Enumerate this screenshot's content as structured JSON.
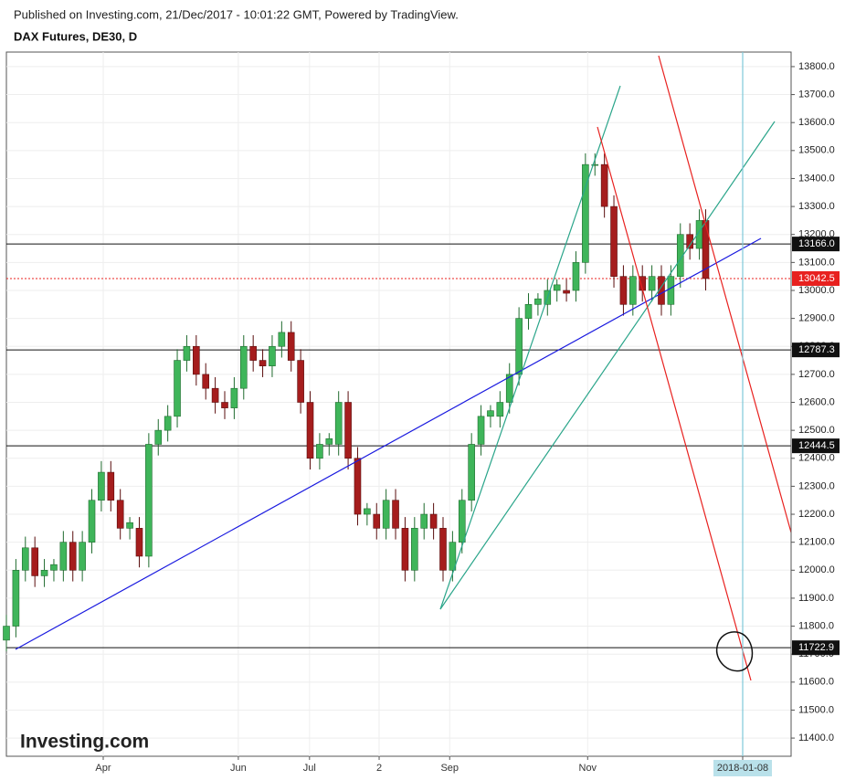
{
  "chart_data": {
    "type": "candlestick",
    "published": "Published on Investing.com, 21/Dec/2017 - 10:01:22 GMT, Powered by TradingView.",
    "title": "DAX Futures, DE30, D",
    "logo": "Investing.com",
    "up_color": "#3fb55a",
    "down_color": "#a51d1d",
    "xlim": [
      0,
      248
    ],
    "xticks": [
      {
        "value": 30.6,
        "label": "Apr"
      },
      {
        "value": 73.3,
        "label": "Jun"
      },
      {
        "value": 95.8,
        "label": "Jul"
      },
      {
        "value": 117.8,
        "label": "2"
      },
      {
        "value": 140.1,
        "label": "Sep"
      },
      {
        "value": 183.7,
        "label": "Nov"
      },
      {
        "value": 232.7,
        "label": "2018-01-08"
      }
    ],
    "ylim": [
      11335,
      13852
    ],
    "yticks": [
      {
        "value": 11400,
        "label": "11400.0"
      },
      {
        "value": 11500,
        "label": "11500.0"
      },
      {
        "value": 11600,
        "label": "11600.0"
      },
      {
        "value": 11700,
        "label": "11700.0"
      },
      {
        "value": 11800,
        "label": "11800.0"
      },
      {
        "value": 11900,
        "label": "11900.0"
      },
      {
        "value": 12000,
        "label": "12000.0"
      },
      {
        "value": 12100,
        "label": "12100.0"
      },
      {
        "value": 12200,
        "label": "12200.0"
      },
      {
        "value": 12300,
        "label": "12300.0"
      },
      {
        "value": 12400,
        "label": "12400.0"
      },
      {
        "value": 12500,
        "label": "12500.0"
      },
      {
        "value": 12600,
        "label": "12600.0"
      },
      {
        "value": 12700,
        "label": "12700.0"
      },
      {
        "value": 12800,
        "label": "12800.0"
      },
      {
        "value": 12900,
        "label": "12900.0"
      },
      {
        "value": 13000,
        "label": "13000.0"
      },
      {
        "value": 13100,
        "label": "13100.0"
      },
      {
        "value": 13200,
        "label": "13200.0"
      },
      {
        "value": 13300,
        "label": "13300.0"
      },
      {
        "value": 13400,
        "label": "13400.0"
      },
      {
        "value": 13500,
        "label": "13500.0"
      },
      {
        "value": 13600,
        "label": "13600.0"
      },
      {
        "value": 13700,
        "label": "13700.0"
      },
      {
        "value": 13800,
        "label": "13800.0"
      }
    ],
    "grid": true,
    "levels": [
      {
        "value": 13166,
        "label": "13166.0"
      },
      {
        "value": 12787.3,
        "label": "12787.3"
      },
      {
        "value": 12444.5,
        "label": "12444.5"
      },
      {
        "value": 11722.9,
        "label": "11722.9"
      }
    ],
    "last_price": {
      "value": 13042.5,
      "label": "13042.5"
    },
    "x": [
      0,
      3,
      6,
      9,
      12,
      15,
      18,
      21,
      24,
      27,
      30,
      33,
      36,
      39,
      42,
      45,
      48,
      51,
      54,
      57,
      60,
      63,
      66,
      69,
      72,
      75,
      78,
      81,
      84,
      87,
      90,
      93,
      96,
      99,
      102,
      105,
      108,
      111,
      114,
      117,
      120,
      123,
      126,
      129,
      132,
      135,
      138,
      141,
      144,
      147,
      150,
      153,
      156,
      159,
      162,
      165,
      168,
      171,
      174,
      177,
      180,
      183,
      186,
      189,
      192,
      195,
      198,
      201,
      204,
      207,
      210,
      213,
      216,
      219,
      221
    ],
    "open": [
      11750,
      11800,
      12000,
      12080,
      11980,
      12000,
      12000,
      12100,
      12000,
      12100,
      12250,
      12350,
      12250,
      12150,
      12150,
      12050,
      12450,
      12500,
      12550,
      12750,
      12800,
      12700,
      12650,
      12600,
      12580,
      12650,
      12800,
      12750,
      12730,
      12800,
      12850,
      12750,
      12600,
      12400,
      12450,
      12450,
      12600,
      12400,
      12200,
      12200,
      12150,
      12250,
      12150,
      12000,
      12150,
      12200,
      12150,
      12000,
      12100,
      12250,
      12450,
      12550,
      12550,
      12600,
      12700,
      12900,
      12950,
      12950,
      13000,
      13000,
      13000,
      13100,
      13450,
      13450,
      13300,
      13050,
      12950,
      13050,
      13000,
      13050,
      12950,
      13050,
      13200,
      13150,
      13250
    ],
    "high": [
      11840,
      12040,
      12120,
      12120,
      12040,
      12040,
      12140,
      12140,
      12140,
      12290,
      12390,
      12390,
      12290,
      12190,
      12190,
      12490,
      12540,
      12590,
      12790,
      12840,
      12840,
      12740,
      12690,
      12640,
      12690,
      12840,
      12840,
      12790,
      12840,
      12890,
      12890,
      12790,
      12640,
      12490,
      12490,
      12640,
      12640,
      12440,
      12240,
      12240,
      12290,
      12290,
      12190,
      12190,
      12240,
      12240,
      12190,
      12140,
      12290,
      12490,
      12590,
      12590,
      12640,
      12740,
      12940,
      12990,
      12990,
      13040,
      13040,
      13040,
      13140,
      13490,
      13490,
      13490,
      13340,
      13090,
      13090,
      13090,
      13090,
      13090,
      13090,
      13240,
      13240,
      13290,
      13290
    ],
    "low": [
      11710,
      11760,
      11960,
      11940,
      11940,
      11960,
      11960,
      11960,
      11960,
      12060,
      12210,
      12210,
      12110,
      12110,
      12010,
      12010,
      12410,
      12460,
      12510,
      12710,
      12660,
      12610,
      12560,
      12540,
      12540,
      12610,
      12710,
      12690,
      12690,
      12760,
      12710,
      12560,
      12360,
      12360,
      12410,
      12410,
      12360,
      12160,
      12160,
      12110,
      12110,
      12110,
      11960,
      11960,
      12110,
      12110,
      11960,
      11960,
      12060,
      12210,
      12410,
      12510,
      12510,
      12560,
      12660,
      12860,
      12910,
      12910,
      12960,
      12960,
      12960,
      13060,
      13410,
      13260,
      13010,
      12910,
      12910,
      12960,
      12960,
      12910,
      12910,
      13010,
      13110,
      13110,
      13000
    ],
    "close": [
      11800,
      12000,
      12080,
      11980,
      12000,
      12020,
      12100,
      12000,
      12100,
      12250,
      12350,
      12250,
      12150,
      12170,
      12050,
      12450,
      12500,
      12550,
      12750,
      12800,
      12700,
      12650,
      12600,
      12580,
      12650,
      12800,
      12750,
      12730,
      12800,
      12850,
      12750,
      12600,
      12400,
      12450,
      12470,
      12600,
      12400,
      12200,
      12220,
      12150,
      12250,
      12150,
      12000,
      12150,
      12200,
      12150,
      12000,
      12100,
      12250,
      12450,
      12550,
      12570,
      12600,
      12700,
      12900,
      12950,
      12970,
      13000,
      13020,
      12990,
      13100,
      13450,
      13450,
      13300,
      13050,
      12950,
      13050,
      13000,
      13050,
      12950,
      13050,
      13200,
      13150,
      13250,
      13042.5
    ]
  }
}
